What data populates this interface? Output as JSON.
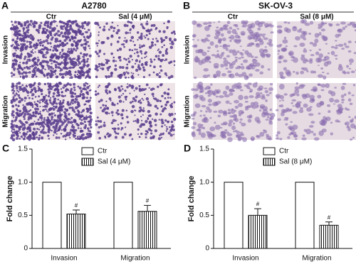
{
  "panels": [
    {
      "label": "A",
      "title": "A2780",
      "columns": [
        "Ctr",
        "Sal (4 μM)"
      ],
      "rows": [
        "Invasion",
        "Migration"
      ]
    },
    {
      "label": "B",
      "title": "SK-OV-3",
      "columns": [
        "Ctr",
        "Sal (8 μM)"
      ],
      "rows": [
        "Invasion",
        "Migration"
      ]
    }
  ],
  "chart_data": [
    {
      "type": "bar",
      "label": "C",
      "ylabel": "Fold change",
      "categories": [
        "Invasion",
        "Migration"
      ],
      "series": [
        {
          "name": "Ctr",
          "color": "#ffffff",
          "values": [
            1,
            1
          ]
        },
        {
          "name": "Sal (4 μM)",
          "color": "#ffffff",
          "hatch": true,
          "values": [
            0.52,
            0.56
          ],
          "errors": [
            0.06,
            0.09
          ],
          "significance": [
            "#",
            "#"
          ]
        }
      ],
      "ylim": [
        0,
        1.5
      ],
      "yticks": [
        0,
        0.5,
        {
          "value": 1,
          "label": "1.0"
        },
        1.5
      ],
      "legend": "top"
    },
    {
      "type": "bar",
      "label": "D",
      "ylabel": "Fold change",
      "categories": [
        "Invasion",
        "Migration"
      ],
      "series": [
        {
          "name": "Ctr",
          "color": "#ffffff",
          "values": [
            1,
            1
          ]
        },
        {
          "name": "Sal (8 μM)",
          "color": "#ffffff",
          "hatch": true,
          "values": [
            0.5,
            0.35
          ],
          "errors": [
            0.1,
            0.05
          ],
          "significance": [
            "#",
            "#"
          ]
        }
      ],
      "ylim": [
        0,
        1.5
      ],
      "yticks": [
        0,
        0.5,
        {
          "value": 1,
          "label": "1.0"
        },
        1.5
      ],
      "legend": "top"
    }
  ]
}
